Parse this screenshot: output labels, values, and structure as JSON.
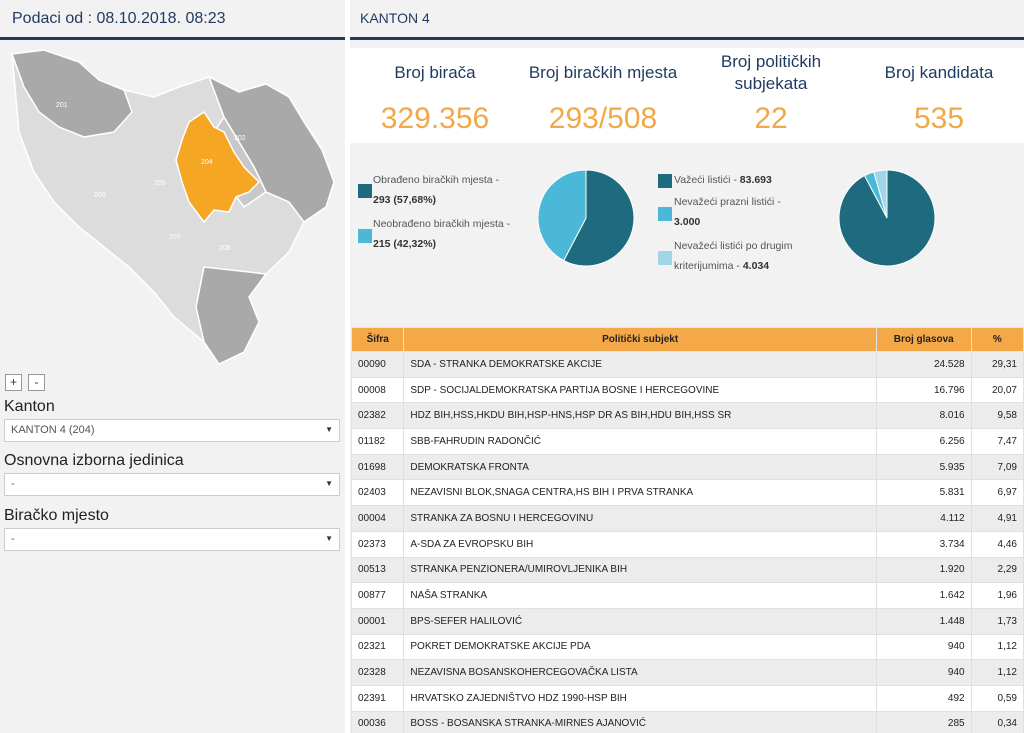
{
  "left_panel": {
    "title": "Podaci od : 08.10.2018. 08:23",
    "map": {
      "highlight_color": "#f5a623",
      "region_labels": [
        "201",
        "202",
        "203",
        "204",
        "205",
        "206",
        "207",
        "208",
        "209",
        "210"
      ],
      "zoom_in": "+",
      "zoom_out": "-"
    },
    "kanton": {
      "label": "Kanton",
      "value": "KANTON 4 (204)"
    },
    "oij": {
      "label": "Osnovna izborna jedinica",
      "value": "-"
    },
    "bm": {
      "label": "Biračko mjesto",
      "value": "-"
    }
  },
  "right_panel": {
    "title": "KANTON 4",
    "stats": [
      {
        "label": "Broj birača",
        "value": "329.356"
      },
      {
        "label": "Broj biračkih mjesta",
        "value": "293/508"
      },
      {
        "label": "Broj političkih subjekata",
        "value": "22"
      },
      {
        "label": "Broj kandidata",
        "value": "535"
      }
    ],
    "legend1": [
      {
        "text": "Obrađeno biračkih mjesta -",
        "value": "293 (57,68%)",
        "color": "#1e6b80"
      },
      {
        "text": "Neobrađeno biračkih mjesta -",
        "value": "215 (42,32%)",
        "color": "#4bb8d8"
      }
    ],
    "legend2": [
      {
        "text": "Važeći listići -",
        "value": "83.693",
        "color": "#1e6b80"
      },
      {
        "text": "Nevažeći prazni listići -",
        "value": "3.000",
        "color": "#4bb8d8"
      },
      {
        "text": "Nevažeći listići po drugim kriterijumima -",
        "value": "4.034",
        "color": "#9fd7e8"
      }
    ],
    "table": {
      "headers": [
        "Šifra",
        "Politički subjekt",
        "Broj glasova",
        "%"
      ],
      "rows": [
        [
          "00090",
          "SDA - STRANKA DEMOKRATSKE AKCIJE",
          "24.528",
          "29,31"
        ],
        [
          "00008",
          "SDP - SOCIJALDEMOKRATSKA PARTIJA BOSNE I HERCEGOVINE",
          "16.796",
          "20,07"
        ],
        [
          "02382",
          "HDZ BIH,HSS,HKDU BIH,HSP-HNS,HSP DR AS BIH,HDU BIH,HSS SR",
          "8.016",
          "9,58"
        ],
        [
          "01182",
          "SBB-FAHRUDIN RADONČIĆ",
          "6.256",
          "7,47"
        ],
        [
          "01698",
          "DEMOKRATSKA FRONTA",
          "5.935",
          "7,09"
        ],
        [
          "02403",
          "NEZAVISNI BLOK,SNAGA CENTRA,HS BIH I PRVA STRANKA",
          "5.831",
          "6,97"
        ],
        [
          "00004",
          "STRANKA ZA BOSNU I HERCEGOVINU",
          "4.112",
          "4,91"
        ],
        [
          "02373",
          "A-SDA ZA EVROPSKU BIH",
          "3.734",
          "4,46"
        ],
        [
          "00513",
          "STRANKA PENZIONERA/UMIROVLJENIKA BIH",
          "1.920",
          "2,29"
        ],
        [
          "00877",
          "NAŠA STRANKA",
          "1.642",
          "1,96"
        ],
        [
          "00001",
          "BPS-SEFER HALILOVIĆ",
          "1.448",
          "1,73"
        ],
        [
          "02321",
          "POKRET DEMOKRATSKE AKCIJE PDA",
          "940",
          "1,12"
        ],
        [
          "02328",
          "NEZAVISNA BOSANSKOHERCEGOVAČKA LISTA",
          "940",
          "1,12"
        ],
        [
          "02391",
          "HRVATSKO ZAJEDNIŠTVO HDZ 1990-HSP BIH",
          "492",
          "0,59"
        ],
        [
          "00036",
          "BOSS - BOSANSKA STRANKA-MIRNES AJANOVIĆ",
          "285",
          "0,34"
        ]
      ]
    }
  },
  "chart_data": [
    {
      "type": "pie",
      "labels": [
        "Obrađeno biračkih mjesta",
        "Neobrađeno biračkih mjesta"
      ],
      "values": [
        293,
        215
      ],
      "colors": [
        "#1e6b80",
        "#4bb8d8"
      ]
    },
    {
      "type": "pie",
      "labels": [
        "Važeći listići",
        "Nevažeći prazni listići",
        "Nevažeći listići po drugim kriterijumima"
      ],
      "values": [
        83693,
        3000,
        4034
      ],
      "colors": [
        "#1e6b80",
        "#4bb8d8",
        "#9fd7e8"
      ]
    }
  ]
}
